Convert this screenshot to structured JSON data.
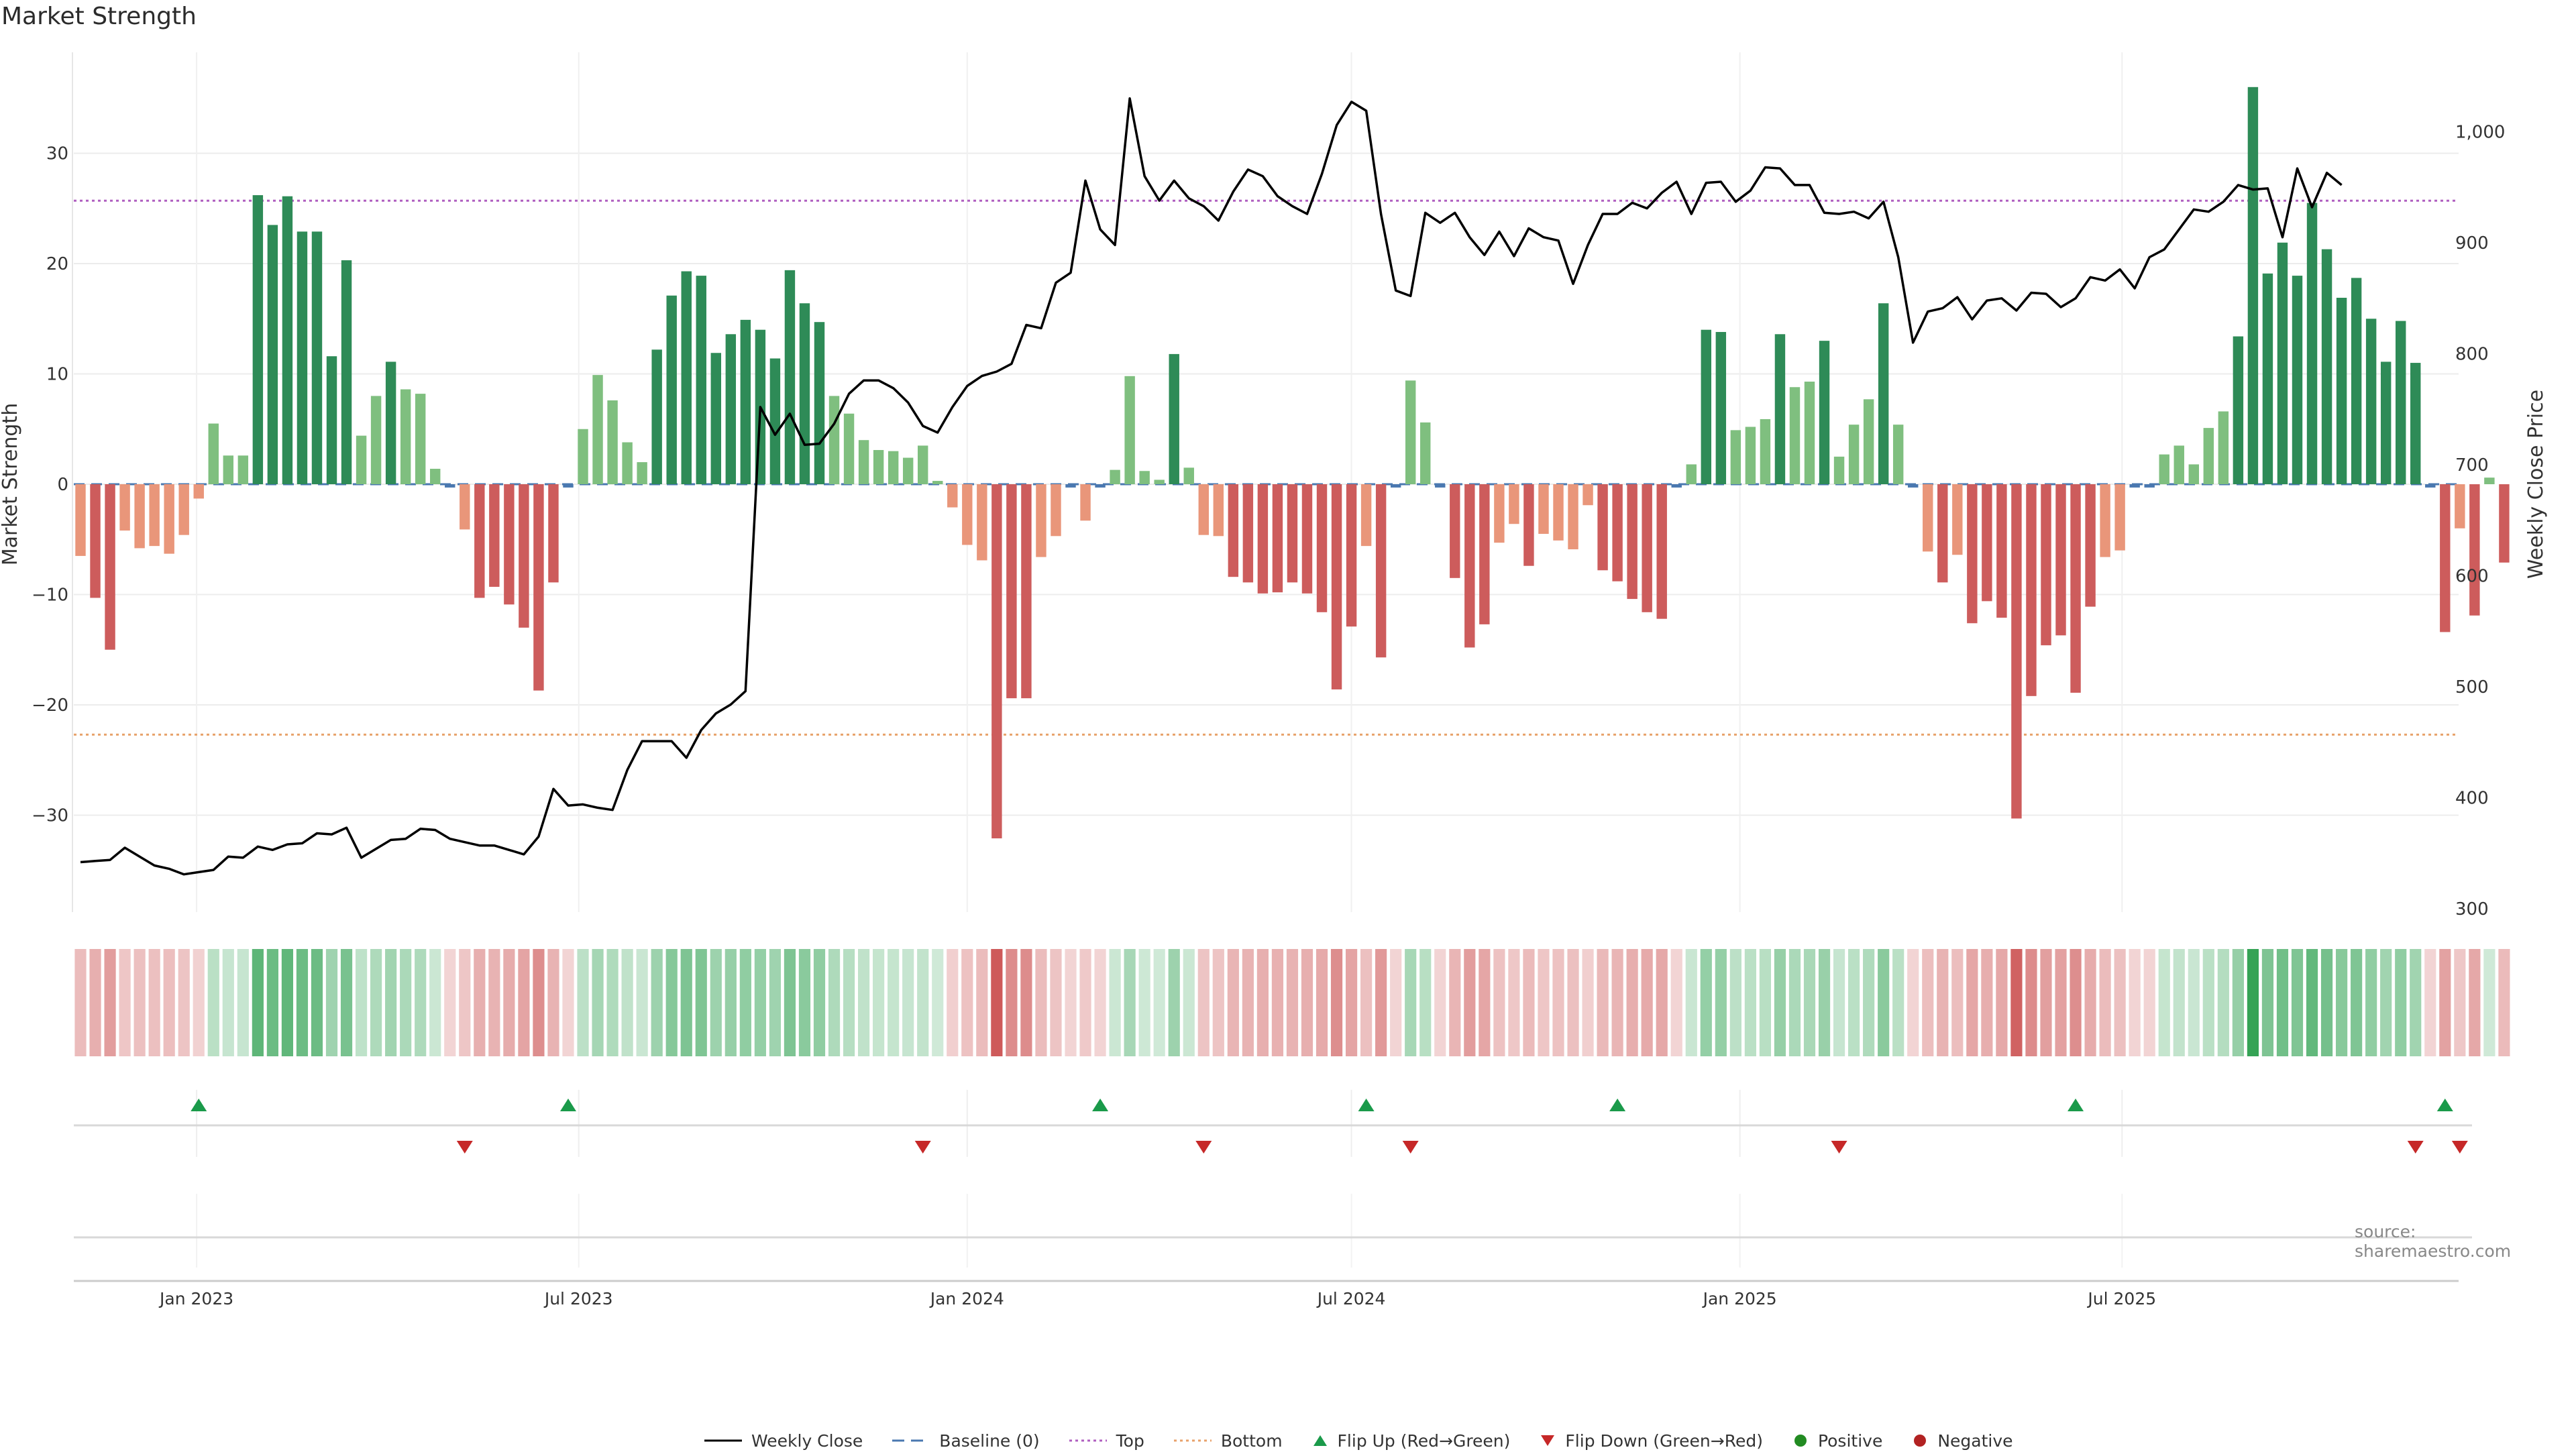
{
  "title": "Market Strength",
  "source_note": "source: sharemaestro.com",
  "colors": {
    "strong_green": "#2e8b57",
    "light_green": "#7fbf7f",
    "strong_red": "#cd5c5c",
    "light_red": "#e9967a",
    "baseline": "#4a78b0",
    "top_line": "#b05fc0",
    "bottom_line": "#e8a26b",
    "price_line": "#000000",
    "flip_up": "#1a9a4a",
    "flip_down": "#c62828"
  },
  "legend": [
    {
      "label": "Weekly Close",
      "icon": "solid-line"
    },
    {
      "label": "Baseline (0)",
      "icon": "dashed-line"
    },
    {
      "label": "Top",
      "icon": "dotted-line"
    },
    {
      "label": "Bottom",
      "icon": "dotted-line"
    },
    {
      "label": "Flip Up (Red→Green)",
      "icon": "triangle-up"
    },
    {
      "label": "Flip Down (Green→Red)",
      "icon": "triangle-down"
    },
    {
      "label": "Positive",
      "icon": "circle"
    },
    {
      "label": "Negative",
      "icon": "circle"
    }
  ],
  "chart_data": {
    "type": "bar",
    "x_axis": {
      "type": "date",
      "ticks": [
        "Jan 2023",
        "Jul 2023",
        "Jan 2024",
        "Jul 2024",
        "Jan 2025",
        "Jul 2025"
      ]
    },
    "y_left": {
      "label": "Market Strength",
      "ylim": [
        -39,
        39
      ],
      "ticks": [
        -30,
        -20,
        -10,
        0,
        10,
        20,
        30
      ]
    },
    "y_right": {
      "label": "Weekly Close Price",
      "ylim": [
        290,
        1040
      ],
      "ticks": [
        300,
        400,
        500,
        600,
        700,
        800,
        900,
        "1,000"
      ]
    },
    "reference_lines": {
      "baseline": 0,
      "top": 25.7,
      "bottom": -22.7
    },
    "series": [
      {
        "name": "Market Strength",
        "type": "bar",
        "start_date": "2022-11-07",
        "interval_days": 7,
        "values": [
          -6.5,
          -10.3,
          -15,
          -4.2,
          -5.8,
          -5.6,
          -6.3,
          -4.6,
          -1.3,
          5.5,
          2.6,
          2.6,
          26.2,
          23.5,
          26.1,
          22.9,
          22.9,
          11.6,
          20.3,
          4.4,
          8,
          11.1,
          8.6,
          8.2,
          1.4,
          -0.3,
          -4.1,
          -10.3,
          -9.3,
          -10.9,
          -13,
          -18.7,
          -8.9,
          -0.3,
          5,
          9.9,
          7.6,
          3.8,
          2,
          12.2,
          17.1,
          19.3,
          18.9,
          11.9,
          13.6,
          14.9,
          14,
          11.4,
          19.4,
          16.4,
          14.7,
          8,
          6.4,
          4,
          3.1,
          3,
          2.4,
          3.5,
          0.3,
          -2.1,
          -5.5,
          -6.9,
          -32.1,
          -19.4,
          -19.4,
          -6.6,
          -4.7,
          -0.3,
          -3.3,
          -0.3,
          1.3,
          9.8,
          1.2,
          0.4,
          11.8,
          1.5,
          -4.6,
          -4.7,
          -8.4,
          -8.9,
          -9.9,
          -9.8,
          -8.9,
          -9.9,
          -11.6,
          -18.6,
          -12.9,
          -5.6,
          -15.7,
          -0.3,
          9.4,
          5.6,
          -0.3,
          -8.5,
          -14.8,
          -12.7,
          -5.3,
          -3.6,
          -7.4,
          -4.5,
          -5.1,
          -5.9,
          -1.9,
          -7.8,
          -8.8,
          -10.4,
          -11.6,
          -12.2,
          -0.3,
          1.8,
          14,
          13.8,
          4.9,
          5.2,
          5.9,
          13.6,
          8.8,
          9.3,
          13,
          2.5,
          5.4,
          7.7,
          16.4,
          5.4,
          -0.3,
          -6.1,
          -8.9,
          -6.4,
          -12.6,
          -10.6,
          -12.1,
          -30.3,
          -19.2,
          -14.6,
          -13.7,
          -18.9,
          -11.1,
          -6.6,
          -6,
          -0.3,
          -0.3,
          2.7,
          3.5,
          1.8,
          5.1,
          6.6,
          13.4,
          36,
          19.1,
          21.9,
          18.9,
          25.5,
          21.3,
          16.9,
          18.7,
          15,
          11.1,
          14.8,
          11,
          -0.3,
          -13.4,
          -4,
          -11.9,
          0.6,
          -7.1
        ]
      },
      {
        "name": "Weekly Close",
        "type": "line",
        "start_date": "2022-11-07",
        "interval_days": 7,
        "values": [
          342,
          343,
          344,
          355,
          347,
          339,
          336,
          331,
          333,
          335,
          347,
          346,
          356,
          353,
          358,
          359,
          368,
          367,
          373,
          346,
          354,
          362,
          363,
          372,
          371,
          363,
          360,
          357,
          357,
          353,
          349,
          365,
          408,
          393,
          394,
          391,
          389,
          425,
          451,
          451,
          451,
          436,
          461,
          476,
          484,
          496,
          752,
          727,
          746,
          718,
          719,
          737,
          764,
          776,
          776,
          769,
          756,
          735,
          729,
          752,
          771,
          780,
          784,
          791,
          826,
          823,
          864,
          873,
          956,
          912,
          898,
          1030,
          960,
          938,
          956,
          940,
          933,
          920,
          946,
          966,
          960,
          942,
          933,
          926,
          962,
          1006,
          1027,
          1019,
          926,
          857,
          852,
          927,
          918,
          927,
          905,
          889,
          910,
          888,
          913,
          905,
          902,
          863,
          898,
          926,
          926,
          936,
          931,
          945,
          955,
          926,
          954,
          955,
          937,
          947,
          968,
          967,
          952,
          952,
          927,
          926,
          928,
          922,
          937,
          887,
          810,
          838,
          841,
          851,
          831,
          848,
          850,
          839,
          855,
          854,
          842,
          850,
          869,
          866,
          876,
          859,
          887,
          894,
          912,
          930,
          928,
          937,
          952,
          948,
          949,
          905,
          967,
          932,
          963,
          952
        ]
      }
    ],
    "flip_up_dates": [
      "2023-01-02",
      "2023-06-26",
      "2024-03-04",
      "2024-07-08",
      "2024-11-04",
      "2025-06-09",
      "2025-12-01"
    ],
    "flip_down_dates": [
      "2023-05-08",
      "2023-12-11",
      "2024-04-22",
      "2024-07-29",
      "2025-02-17",
      "2025-11-17",
      "2025-12-08"
    ]
  }
}
